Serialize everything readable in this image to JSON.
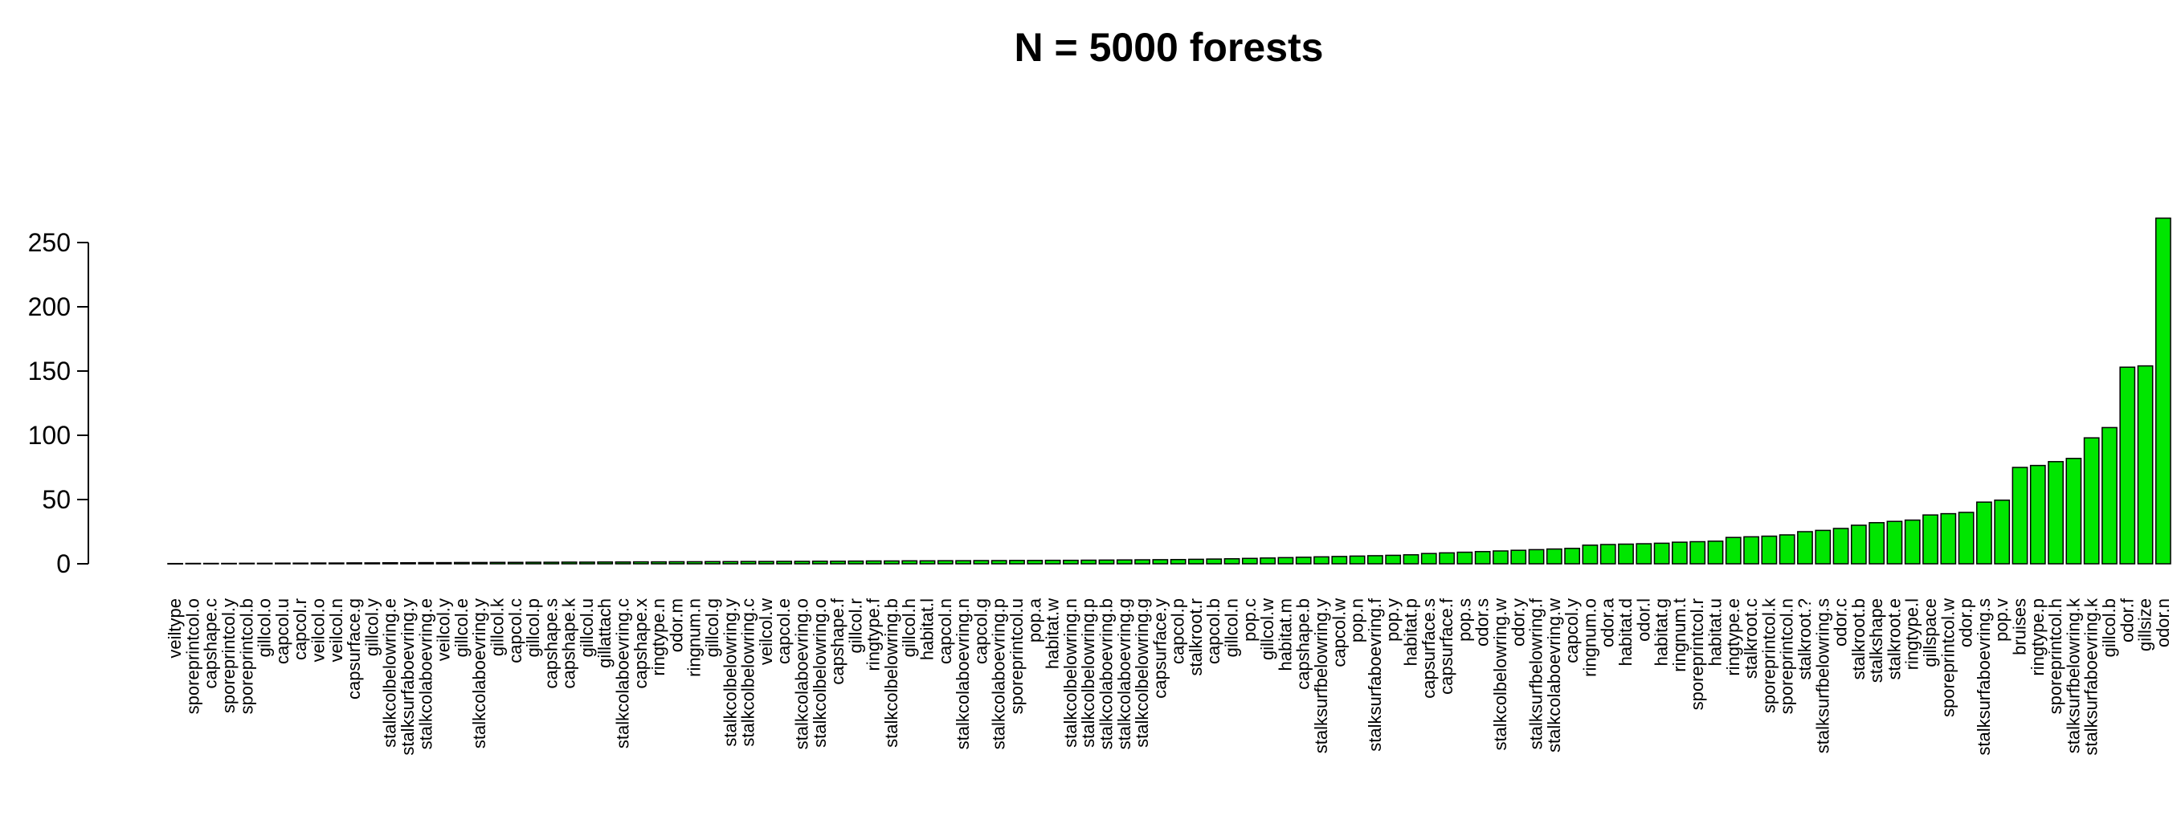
{
  "chart_data": {
    "type": "bar",
    "title": "N = 5000 forests",
    "xlabel": "",
    "ylabel": "",
    "ylim": [
      0,
      270
    ],
    "yticks": [
      0,
      50,
      100,
      150,
      200,
      250
    ],
    "bar_color": "#00e600",
    "categories": [
      "veiltype",
      "sporeprintcol.o",
      "capshape.c",
      "sporeprintcol.y",
      "sporeprintcol.b",
      "gillcol.o",
      "capcol.u",
      "capcol.r",
      "veilcol.o",
      "veilcol.n",
      "capsurface.g",
      "gillcol.y",
      "stalkcolbelowring.e",
      "stalksurfaboevring.y",
      "stalkcolaboevring.e",
      "veilcol.y",
      "gillcol.e",
      "stalkcolaboevring.y",
      "gillcol.k",
      "capcol.c",
      "gillcol.p",
      "capshape.s",
      "capshape.k",
      "gillcol.u",
      "gillattach",
      "stalkcolaboevring.c",
      "capshape.x",
      "ringtype.n",
      "odor.m",
      "ringnum.n",
      "gillcol.g",
      "stalkcolbelowring.y",
      "stalkcolbelowring.c",
      "veilcol.w",
      "capcol.e",
      "stalkcolaboevring.o",
      "stalkcolbelowring.o",
      "capshape.f",
      "gillcol.r",
      "ringtype.f",
      "stalkcolbelowring.b",
      "gillcol.h",
      "habitat.l",
      "capcol.n",
      "stalkcolaboevring.n",
      "capcol.g",
      "stalkcolaboevring.p",
      "sporeprintcol.u",
      "pop.a",
      "habitat.w",
      "stalkcolbelowring.n",
      "stalkcolbelowring.p",
      "stalkcolaboevring.b",
      "stalkcolaboevring.g",
      "stalkcolbelowring.g",
      "capsurface.y",
      "capcol.p",
      "stalkroot.r",
      "capcol.b",
      "gillcol.n",
      "pop.c",
      "gillcol.w",
      "habitat.m",
      "capshape.b",
      "stalksurfbelowring.y",
      "capcol.w",
      "pop.n",
      "stalksurfaboevring.f",
      "pop.y",
      "habitat.p",
      "capsurface.s",
      "capsurface.f",
      "pop.s",
      "odor.s",
      "stalkcolbelowring.w",
      "odor.y",
      "stalksurfbelowring.f",
      "stalkcolaboevring.w",
      "capcol.y",
      "ringnum.o",
      "odor.a",
      "habitat.d",
      "odor.l",
      "habitat.g",
      "ringnum.t",
      "sporeprintcol.r",
      "habitat.u",
      "ringtype.e",
      "stalkroot.c",
      "sporeprintcol.k",
      "sporeprintcol.n",
      "stalkroot.?",
      "stalksurfbelowring.s",
      "odor.c",
      "stalkroot.b",
      "stalkshape",
      "stalkroot.e",
      "ringtype.l",
      "gillspace",
      "sporeprintcol.w",
      "odor.p",
      "stalksurfaboevring.s",
      "pop.v",
      "bruises",
      "ringtype.p",
      "sporeprintcol.h",
      "stalksurfbelowring.k",
      "stalksurfaboevring.k",
      "gillcol.b",
      "odor.f",
      "gillsize",
      "odor.n"
    ],
    "values": [
      0.2,
      0.3,
      0.3,
      0.3,
      0.4,
      0.4,
      0.5,
      0.5,
      0.6,
      0.6,
      0.7,
      0.7,
      0.8,
      0.8,
      0.9,
      0.9,
      1.0,
      1.0,
      1.1,
      1.1,
      1.2,
      1.2,
      1.3,
      1.3,
      1.4,
      1.4,
      1.5,
      1.5,
      1.6,
      1.6,
      1.7,
      1.7,
      1.8,
      1.8,
      1.9,
      1.9,
      2.0,
      2.0,
      2.1,
      2.2,
      2.2,
      2.3,
      2.3,
      2.4,
      2.4,
      2.5,
      2.5,
      2.6,
      2.6,
      2.7,
      2.7,
      2.8,
      2.9,
      3.0,
      3.1,
      3.2,
      3.3,
      3.5,
      3.7,
      3.9,
      4.2,
      4.5,
      4.8,
      5.1,
      5.4,
      5.7,
      6.0,
      6.3,
      6.6,
      7.0,
      8.0,
      8.5,
      9.0,
      9.5,
      10.0,
      10.5,
      11.0,
      11.5,
      12.0,
      14.5,
      15.0,
      15.3,
      15.6,
      16.0,
      16.8,
      17.2,
      17.6,
      20.5,
      21.0,
      21.5,
      22.5,
      25.0,
      26.0,
      27.5,
      30.0,
      32.0,
      33.0,
      34.0,
      38.0,
      39.0,
      40.0,
      48.0,
      49.5,
      75.0,
      76.5,
      79.5,
      82.0,
      98.0,
      106.0,
      153.0,
      154.0,
      269.0
    ]
  }
}
